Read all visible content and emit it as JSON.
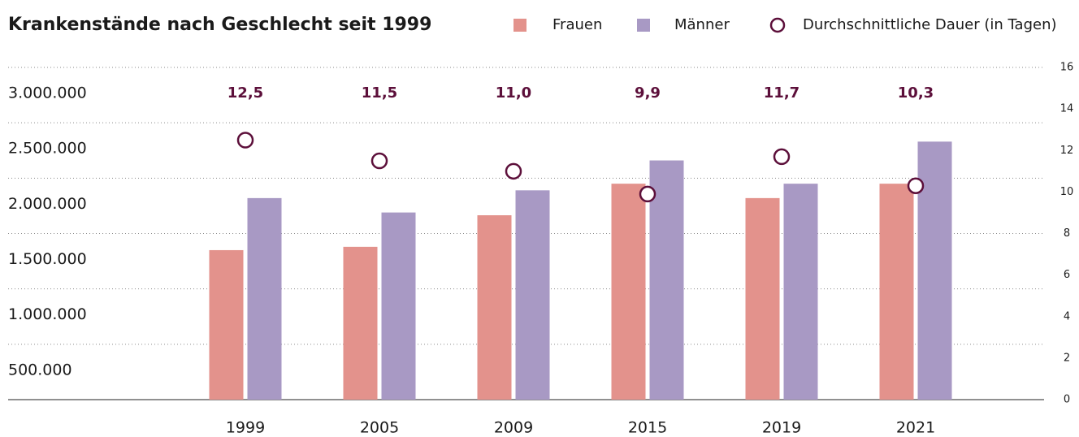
{
  "chart_data": {
    "type": "bar",
    "title": "Krankenstände nach Geschlecht seit 1999",
    "categories": [
      "1999",
      "2005",
      "2009",
      "2015",
      "2019",
      "2021"
    ],
    "series": [
      {
        "name": "Frauen",
        "color": "#e3928c",
        "values": [
          1350000,
          1380000,
          1665000,
          1950000,
          1820000,
          1950000
        ]
      },
      {
        "name": "Männer",
        "color": "#a899c4",
        "values": [
          1820000,
          1690000,
          1890000,
          2160000,
          1950000,
          2330000
        ]
      },
      {
        "name": "Durchschnittliche Dauer (in Tagen)",
        "type": "scatter",
        "axis": "y2",
        "color": "#5c0f3a",
        "values": [
          12.5,
          11.5,
          11.0,
          9.9,
          11.7,
          10.3
        ],
        "value_labels": [
          "12,5",
          "11,5",
          "11,0",
          "9,9",
          "11,7",
          "10,3"
        ]
      }
    ],
    "ylim": [
      0,
      3000000
    ],
    "yticks": [
      {
        "value": 500000,
        "label": "500.000"
      },
      {
        "value": 1000000,
        "label": "1.000.000"
      },
      {
        "value": 1500000,
        "label": "1.500.000"
      },
      {
        "value": 2000000,
        "label": "2.000.000"
      },
      {
        "value": 2500000,
        "label": "2.500.000"
      },
      {
        "value": 3000000,
        "label": "3.000.000"
      }
    ],
    "y2lim": [
      0,
      16
    ],
    "y2ticks": [
      0,
      2,
      4,
      6,
      8,
      10,
      12,
      14,
      16
    ],
    "grid": true
  }
}
